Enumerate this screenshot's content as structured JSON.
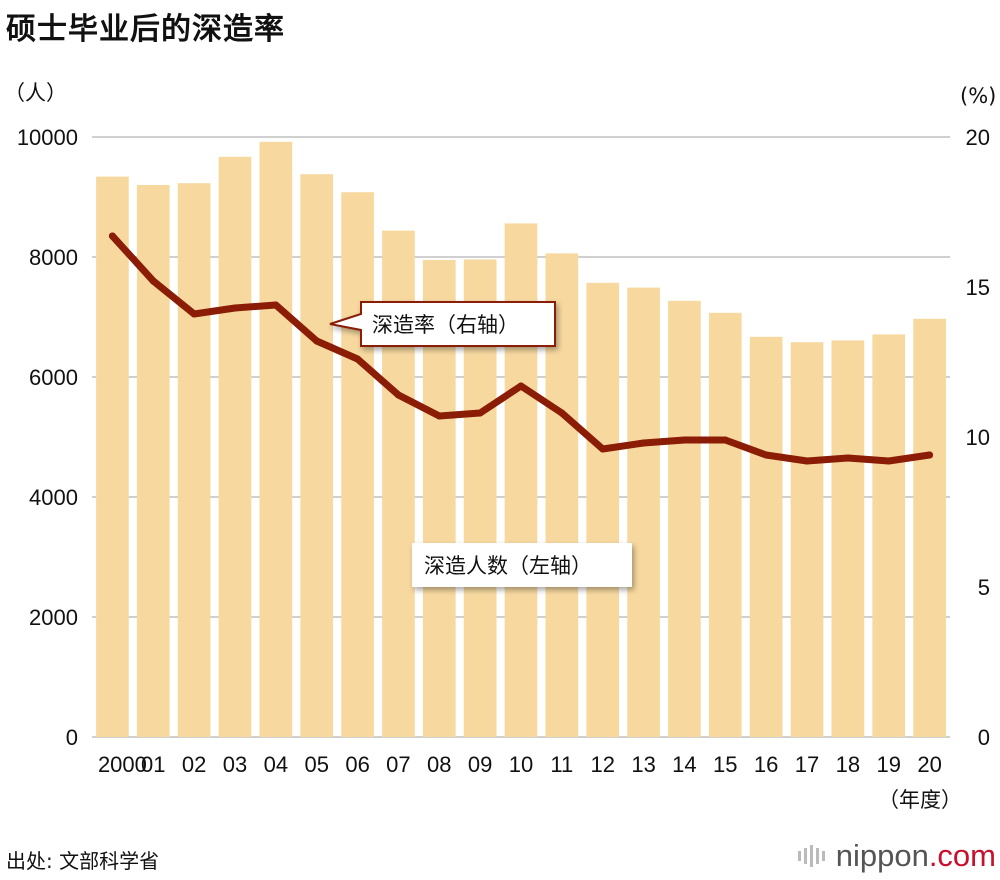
{
  "chart_data": {
    "type": "bar+line",
    "title": "硕士毕业后的深造率",
    "left_axis_unit": "（人）",
    "right_axis_unit": "(%)",
    "x_unit": "（年度）",
    "categories": [
      "2000",
      "01",
      "02",
      "03",
      "04",
      "05",
      "06",
      "07",
      "08",
      "09",
      "10",
      "11",
      "12",
      "13",
      "14",
      "15",
      "16",
      "17",
      "18",
      "19",
      "20"
    ],
    "left_ylim": [
      0,
      10000
    ],
    "left_ticks": [
      "10000",
      "8000",
      "6000",
      "4000",
      "2000",
      "0"
    ],
    "right_ylim": [
      0,
      20
    ],
    "right_ticks": [
      "20",
      "15",
      "10",
      "5",
      "0"
    ],
    "grid": true,
    "series": [
      {
        "name": "深造人数（左轴）",
        "type": "bar",
        "axis": "left",
        "color": "#f7d9a0",
        "values": [
          9340,
          9200,
          9230,
          9670,
          9920,
          9380,
          9080,
          8440,
          7950,
          7960,
          8560,
          8060,
          7570,
          7490,
          7270,
          7070,
          6670,
          6580,
          6610,
          6710,
          6970
        ]
      },
      {
        "name": "深造率（右轴）",
        "type": "line",
        "axis": "right",
        "color": "#8b1c06",
        "values": [
          16.7,
          15.2,
          14.1,
          14.3,
          14.4,
          13.2,
          12.6,
          11.4,
          10.7,
          10.8,
          11.7,
          10.8,
          9.6,
          9.8,
          9.9,
          9.9,
          9.4,
          9.2,
          9.3,
          9.2,
          9.4
        ]
      }
    ]
  },
  "source": "出处: 文部科学省",
  "brand": {
    "name": "nippon",
    "suffix": ".com"
  }
}
